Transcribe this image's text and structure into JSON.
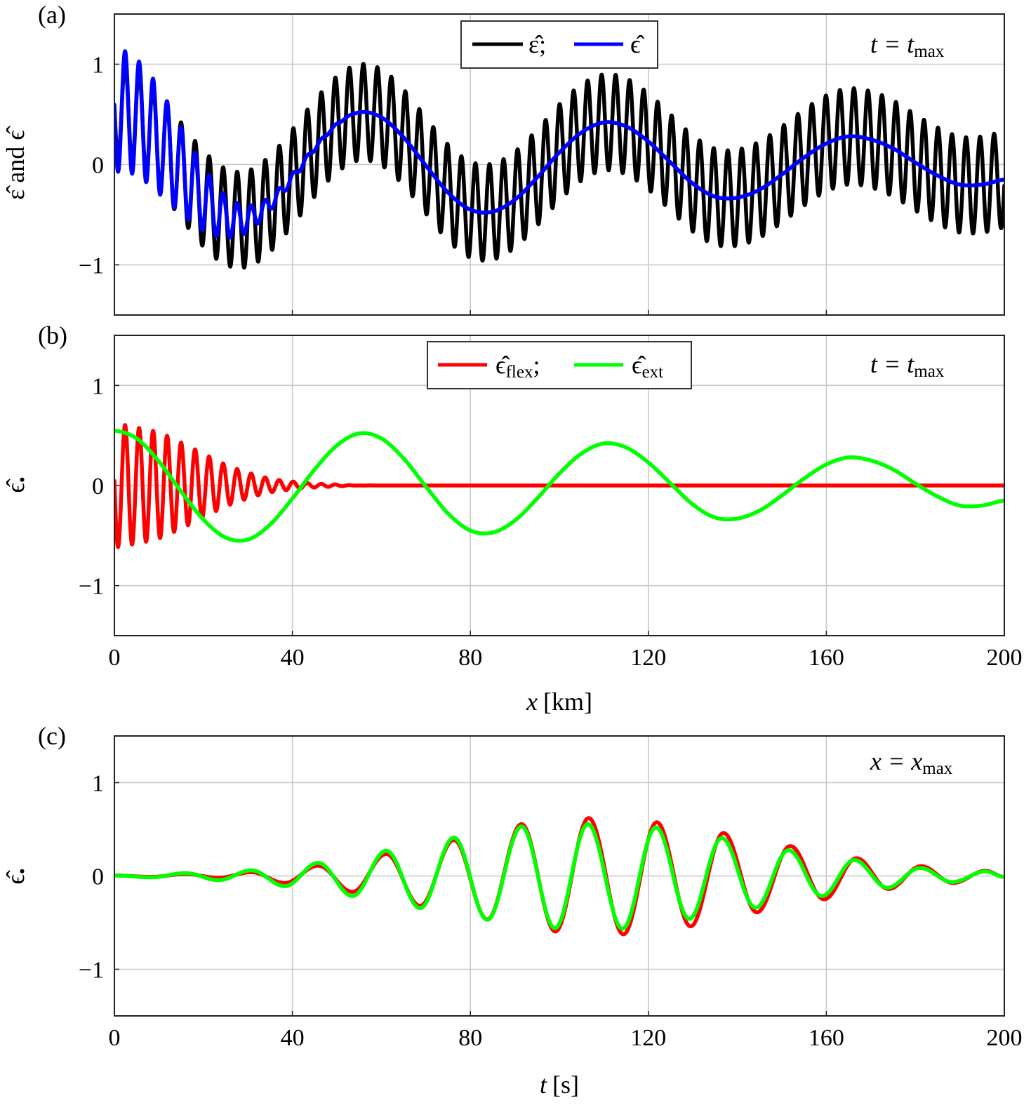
{
  "colors": {
    "black": "#000000",
    "blue": "#0000ff",
    "red": "#ff0000",
    "green": "#00ff00",
    "grid": "#c8c8c8"
  },
  "chart_data": [
    {
      "panel": "(a)",
      "type": "line",
      "xlim": [
        0,
        200
      ],
      "ylim": [
        -1.5,
        1.5
      ],
      "xticks": [
        "0",
        "40",
        "80",
        "120",
        "160",
        "200"
      ],
      "xtick_values": [
        0,
        40,
        80,
        120,
        160,
        200
      ],
      "yticks": [
        "1",
        "0",
        "−1"
      ],
      "ytick_values": [
        1,
        0,
        -1
      ],
      "ylabel": "ε̂ and ϵ̂",
      "grid": true,
      "legend_placement": "top-center",
      "annotation": {
        "main": "t = t",
        "sub": "max"
      },
      "x_km": [
        0,
        5,
        10,
        15,
        20,
        25,
        30,
        35,
        40,
        45,
        50,
        55,
        60,
        65,
        70,
        75,
        80,
        85,
        90,
        95,
        100,
        105,
        110,
        115,
        120,
        125,
        130,
        135,
        140,
        145,
        150,
        155,
        160,
        165,
        170,
        175,
        180,
        185,
        190,
        195,
        200
      ],
      "series": [
        {
          "name": "ε̂;",
          "color": "#000000",
          "oscillation_period_km": 3.15,
          "oscillation_peak_at_km": 55.95,
          "upper_envelope": [
            1.03,
            0.95,
            0.72,
            0.42,
            0.14,
            -0.04,
            -0.06,
            0.09,
            0.35,
            0.64,
            0.88,
            1.0,
            0.95,
            0.75,
            0.47,
            0.2,
            0.03,
            0.01,
            0.13,
            0.35,
            0.6,
            0.8,
            0.9,
            0.86,
            0.71,
            0.5,
            0.29,
            0.16,
            0.15,
            0.23,
            0.38,
            0.55,
            0.69,
            0.76,
            0.73,
            0.64,
            0.5,
            0.37,
            0.28,
            0.28,
            0.33
          ],
          "lower_envelope": [
            0.07,
            -0.01,
            -0.24,
            -0.54,
            -0.82,
            -1.0,
            -1.02,
            -0.87,
            -0.61,
            -0.32,
            -0.08,
            0.04,
            -0.01,
            -0.21,
            -0.49,
            -0.76,
            -0.93,
            -0.95,
            -0.83,
            -0.61,
            -0.36,
            -0.16,
            -0.06,
            -0.1,
            -0.25,
            -0.46,
            -0.67,
            -0.8,
            -0.81,
            -0.73,
            -0.58,
            -0.41,
            -0.27,
            -0.2,
            -0.23,
            -0.32,
            -0.46,
            -0.59,
            -0.68,
            -0.68,
            -0.63
          ]
        },
        {
          "name": "ϵ̂",
          "color": "#0000ff",
          "oscillation_period_km": 3.15,
          "oscillation_peak_at_km": 2.4,
          "upper_envelope": [
            1.17,
            1.05,
            0.77,
            0.37,
            -0.02,
            -0.31,
            -0.41,
            -0.32,
            -0.09,
            0.18,
            0.41,
            0.52,
            0.47,
            0.27,
            -0.01,
            -0.28,
            -0.45,
            -0.47,
            -0.35,
            -0.13,
            0.12,
            0.32,
            0.42,
            0.38,
            0.23,
            0.02,
            -0.19,
            -0.32,
            -0.33,
            -0.25,
            -0.1,
            0.07,
            0.21,
            0.28,
            0.25,
            0.16,
            0.02,
            -0.11,
            -0.2,
            -0.2,
            -0.15
          ],
          "lower_envelope": [
            -0.07,
            -0.11,
            -0.29,
            -0.49,
            -0.66,
            -0.73,
            -0.67,
            -0.46,
            -0.17,
            0.14,
            0.39,
            0.52,
            0.47,
            0.27,
            -0.01,
            -0.28,
            -0.45,
            -0.47,
            -0.35,
            -0.13,
            0.12,
            0.32,
            0.42,
            0.38,
            0.23,
            0.02,
            -0.19,
            -0.32,
            -0.33,
            -0.25,
            -0.1,
            0.07,
            0.21,
            0.28,
            0.25,
            0.16,
            0.02,
            -0.11,
            -0.2,
            -0.2,
            -0.15
          ]
        }
      ]
    },
    {
      "panel": "(b)",
      "type": "line",
      "xlim": [
        0,
        200
      ],
      "ylim": [
        -1.5,
        1.5
      ],
      "xticks": [
        "0",
        "40",
        "80",
        "120",
        "160",
        "200"
      ],
      "xtick_values": [
        0,
        40,
        80,
        120,
        160,
        200
      ],
      "yticks": [
        "1",
        "0",
        "−1"
      ],
      "ytick_values": [
        1,
        0,
        -1
      ],
      "xlabel": {
        "var": "x",
        "unit": "[km]"
      },
      "ylabel": {
        "main": "ϵ̂",
        "sub": "•"
      },
      "grid": true,
      "legend_placement": "top-center",
      "annotation": {
        "main": "t = t",
        "sub": "max"
      },
      "x_km": [
        0,
        5,
        10,
        15,
        20,
        25,
        30,
        35,
        40,
        45,
        50,
        55,
        60,
        65,
        70,
        75,
        80,
        85,
        90,
        95,
        100,
        105,
        110,
        115,
        120,
        125,
        130,
        135,
        140,
        145,
        150,
        155,
        160,
        165,
        170,
        175,
        180,
        185,
        190,
        195,
        200
      ],
      "series": [
        {
          "name": "ϵ̂",
          "name_sub": "flex",
          "name_suffix": ";",
          "color": "#ff0000",
          "oscillation_period_km": 3.15,
          "oscillation_peak_at_km": 2.4,
          "upper_envelope": [
            0.62,
            0.58,
            0.53,
            0.43,
            0.32,
            0.21,
            0.13,
            0.07,
            0.04,
            0.02,
            0.01,
            0,
            0,
            0,
            0,
            0,
            0,
            0,
            0,
            0,
            0,
            0,
            0,
            0,
            0,
            0,
            0,
            0,
            0,
            0,
            0,
            0,
            0,
            0,
            0,
            0,
            0,
            0,
            0,
            0,
            0
          ],
          "lower_envelope": [
            -0.62,
            -0.58,
            -0.53,
            -0.43,
            -0.32,
            -0.21,
            -0.13,
            -0.07,
            -0.04,
            -0.02,
            -0.01,
            0,
            0,
            0,
            0,
            0,
            0,
            0,
            0,
            0,
            0,
            0,
            0,
            0,
            0,
            0,
            0,
            0,
            0,
            0,
            0,
            0,
            0,
            0,
            0,
            0,
            0,
            0,
            0,
            0,
            0
          ]
        },
        {
          "name": "ϵ̂",
          "name_sub": "ext",
          "color": "#00ff00",
          "values": [
            0.55,
            0.47,
            0.24,
            -0.06,
            -0.34,
            -0.52,
            -0.54,
            -0.39,
            -0.13,
            0.16,
            0.4,
            0.52,
            0.47,
            0.27,
            -0.01,
            -0.28,
            -0.45,
            -0.47,
            -0.35,
            -0.13,
            0.12,
            0.32,
            0.42,
            0.38,
            0.23,
            0.02,
            -0.19,
            -0.32,
            -0.33,
            -0.25,
            -0.1,
            0.07,
            0.21,
            0.28,
            0.25,
            0.16,
            0.02,
            -0.11,
            -0.2,
            -0.2,
            -0.15
          ]
        }
      ]
    },
    {
      "panel": "(c)",
      "type": "line",
      "xlim": [
        0,
        200
      ],
      "ylim": [
        -1.5,
        1.5
      ],
      "xticks": [
        "0",
        "40",
        "80",
        "120",
        "160",
        "200"
      ],
      "xtick_values": [
        0,
        40,
        80,
        120,
        160,
        200
      ],
      "yticks": [
        "1",
        "0",
        "−1"
      ],
      "ytick_values": [
        1,
        0,
        -1
      ],
      "xlabel": {
        "var": "t",
        "unit": "[s]"
      },
      "ylabel": {
        "main": "ϵ̂",
        "sub": "•"
      },
      "grid": true,
      "annotation": {
        "main": "x = x",
        "sub": "max"
      },
      "series": [
        {
          "color": "#ff0000",
          "extrema_t_value": [
            [
              0,
              0.005
            ],
            [
              8.3,
              -0.01
            ],
            [
              16,
              0.02
            ],
            [
              23.4,
              -0.02
            ],
            [
              30.8,
              0.04
            ],
            [
              38.3,
              -0.075
            ],
            [
              45.8,
              0.11
            ],
            [
              53.5,
              -0.17
            ],
            [
              61.1,
              0.235
            ],
            [
              68.7,
              -0.32
            ],
            [
              76.3,
              0.385
            ],
            [
              83.8,
              -0.465
            ],
            [
              91.5,
              0.555
            ],
            [
              99.1,
              -0.595
            ],
            [
              106.6,
              0.62
            ],
            [
              114.4,
              -0.625
            ],
            [
              121.9,
              0.575
            ],
            [
              129.5,
              -0.54
            ],
            [
              136.9,
              0.46
            ],
            [
              144.4,
              -0.39
            ],
            [
              151.9,
              0.32
            ],
            [
              159.5,
              -0.25
            ],
            [
              166.8,
              0.19
            ],
            [
              174,
              -0.14
            ],
            [
              181.3,
              0.105
            ],
            [
              188.5,
              -0.075
            ],
            [
              195.8,
              0.055
            ],
            [
              200,
              -0.01
            ]
          ]
        },
        {
          "color": "#00ff00",
          "extrema_t_value": [
            [
              0,
              0.005
            ],
            [
              8.3,
              -0.015
            ],
            [
              16,
              0.03
            ],
            [
              23.4,
              -0.045
            ],
            [
              30.8,
              0.06
            ],
            [
              38.3,
              -0.11
            ],
            [
              45.8,
              0.14
            ],
            [
              53.5,
              -0.215
            ],
            [
              61.1,
              0.27
            ],
            [
              68.7,
              -0.345
            ],
            [
              76.3,
              0.41
            ],
            [
              83.8,
              -0.47
            ],
            [
              91.5,
              0.53
            ],
            [
              99,
              -0.56
            ],
            [
              106.4,
              0.555
            ],
            [
              114.2,
              -0.565
            ],
            [
              121.7,
              0.52
            ],
            [
              129.2,
              -0.46
            ],
            [
              136.5,
              0.405
            ],
            [
              144.1,
              -0.34
            ],
            [
              151.5,
              0.275
            ],
            [
              159,
              -0.215
            ],
            [
              166.3,
              0.17
            ],
            [
              173.7,
              -0.125
            ],
            [
              181.1,
              0.085
            ],
            [
              188.3,
              -0.065
            ],
            [
              195.8,
              0.048
            ],
            [
              200,
              -0.01
            ]
          ]
        }
      ]
    }
  ]
}
